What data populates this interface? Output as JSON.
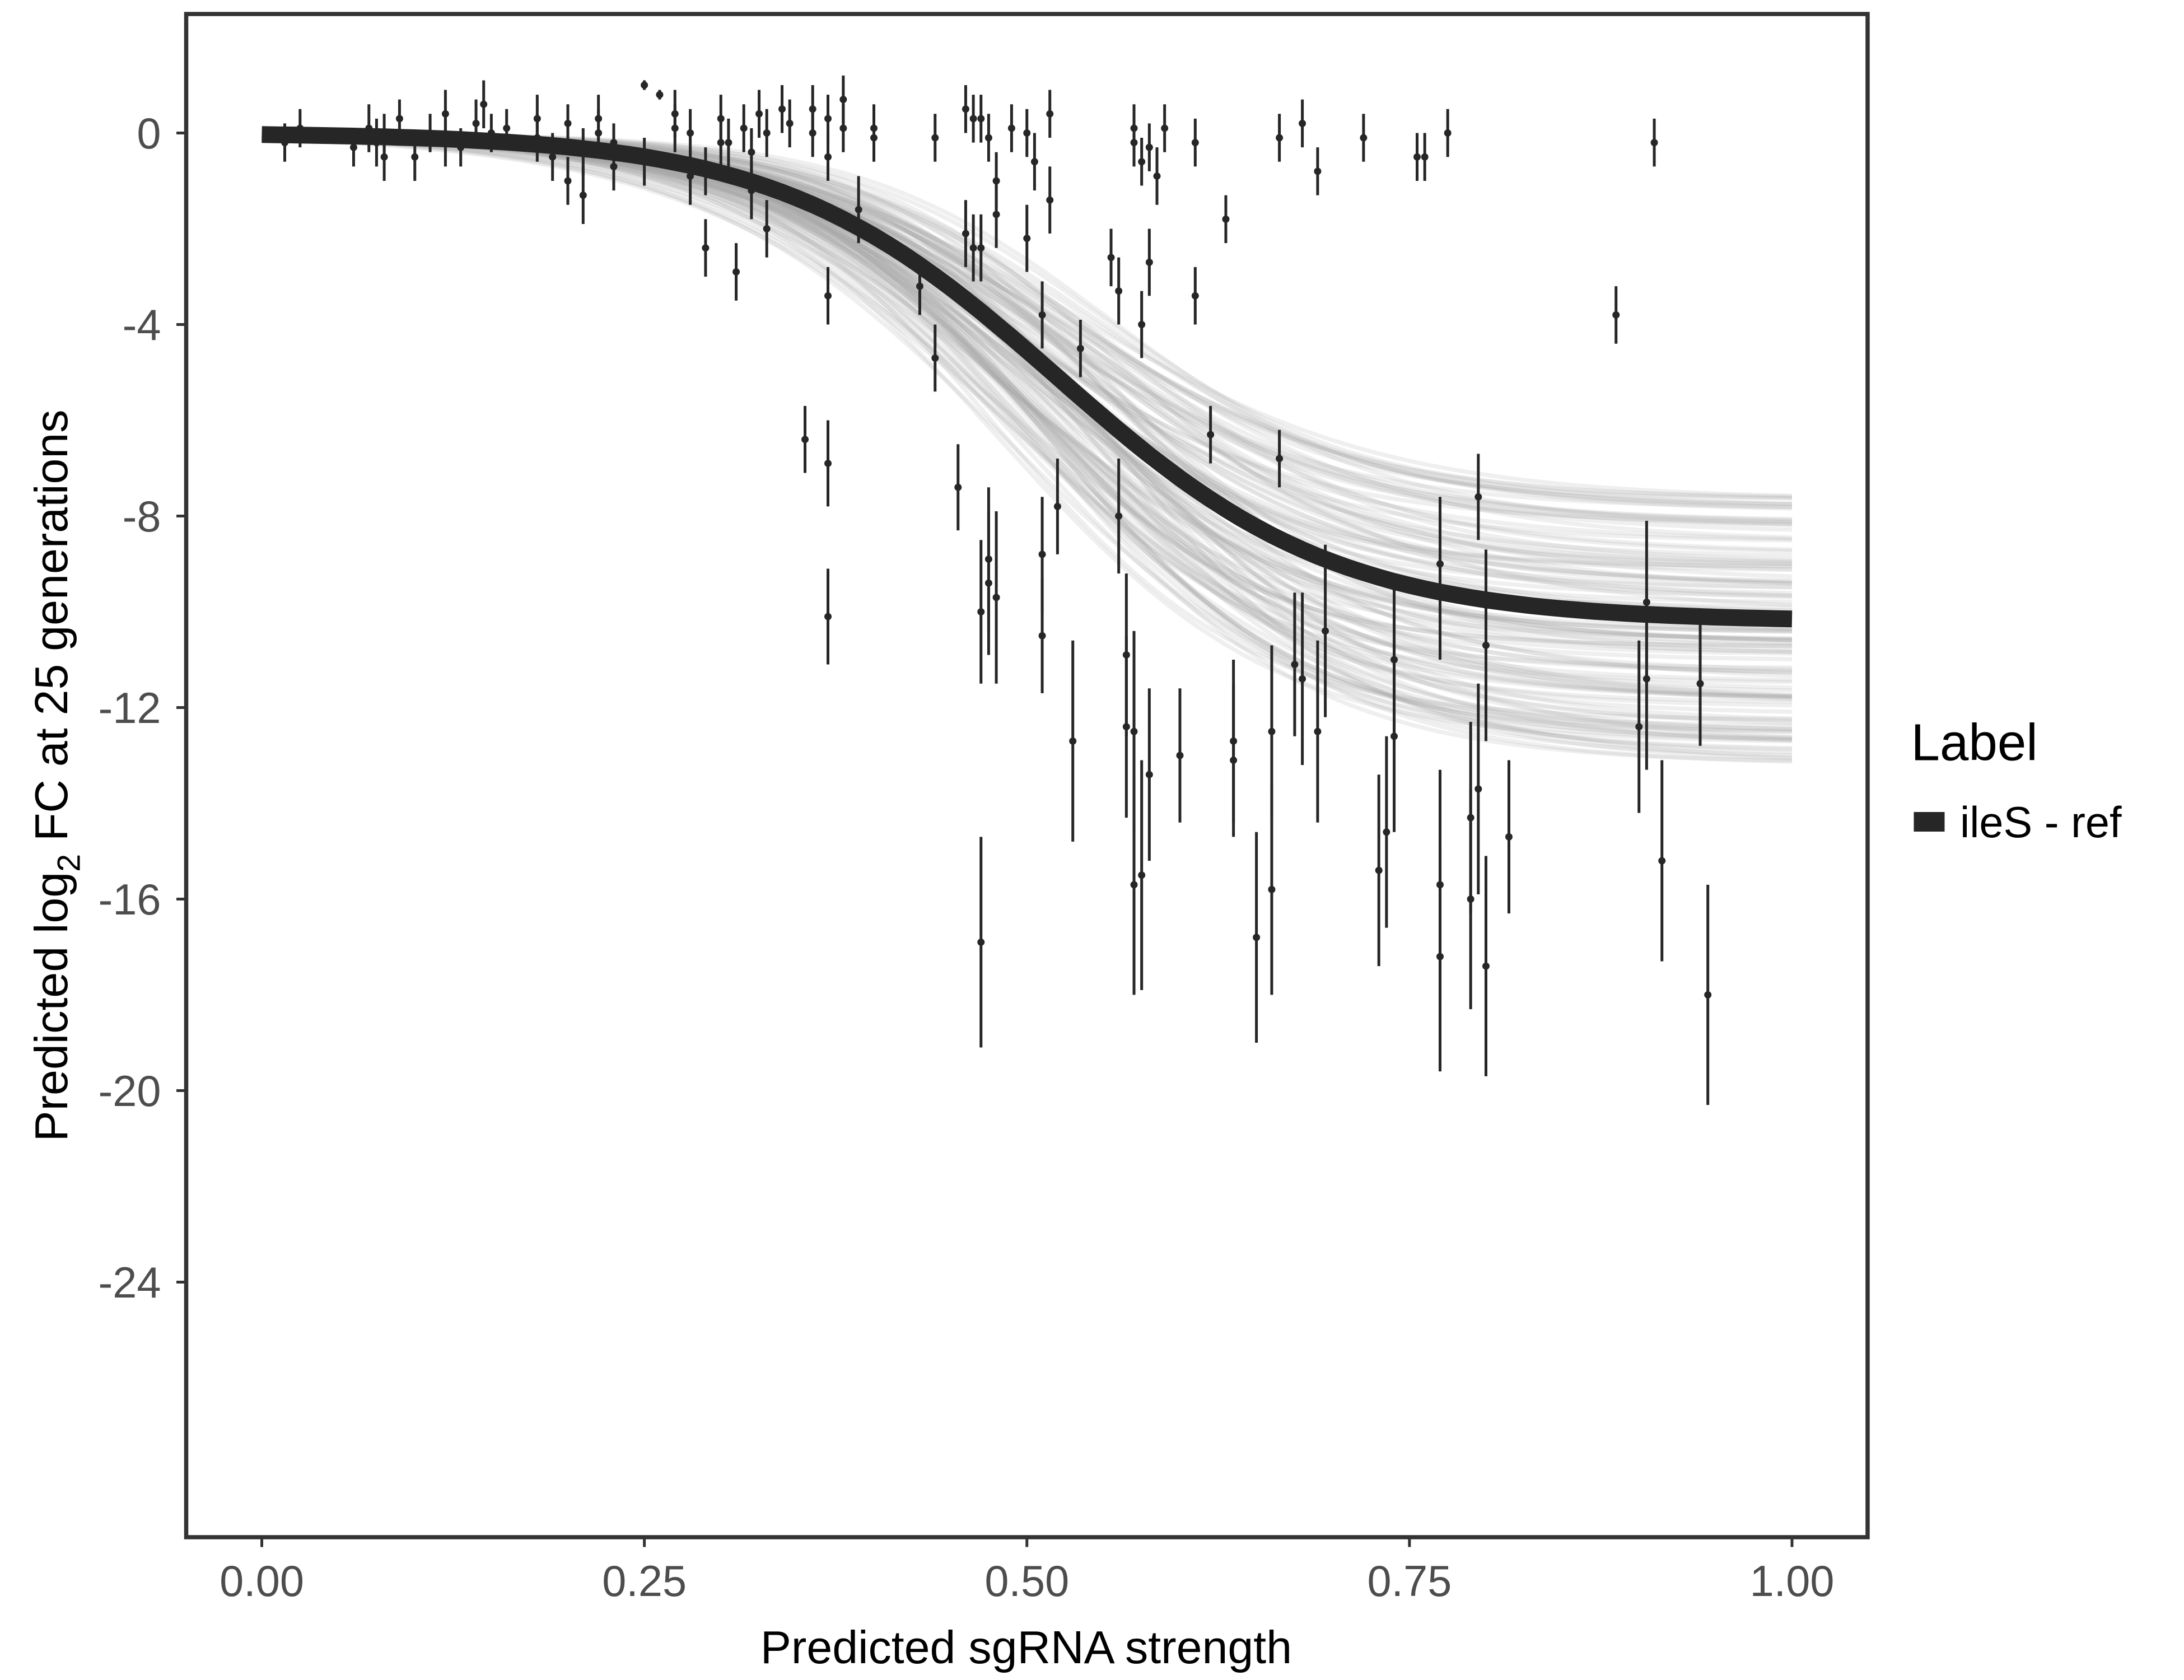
{
  "chart_data": {
    "type": "scatter",
    "xlabel": "Predicted sgRNA strength",
    "ylabel_parts": {
      "pre": "Predicted  log",
      "sub": "2",
      "post": " FC at 25 generations"
    },
    "xlim": [
      -0.05,
      1.05
    ],
    "ylim": [
      -29.3,
      2.5
    ],
    "x_ticks": [
      "0.00",
      "0.25",
      "0.50",
      "0.75",
      "1.00"
    ],
    "x_tick_values": [
      0,
      0.25,
      0.5,
      0.75,
      1
    ],
    "y_ticks": [
      "0",
      "-4",
      "-8",
      "-12",
      "-16",
      "-20",
      "-24"
    ],
    "y_tick_values": [
      0,
      -4,
      -8,
      -12,
      -16,
      -20,
      -24
    ],
    "grid": false,
    "legend": {
      "title": "Label",
      "placement": "right",
      "entries": [
        {
          "name": "ileS - ref",
          "color": "#262626"
        }
      ]
    },
    "fit_curve": {
      "form": "logistic",
      "upper": 0,
      "lower": -10.2,
      "midpoint": 0.52,
      "slope": 11
    },
    "posterior_band": {
      "lower_asymptote_range": [
        -13.2,
        -7.6
      ],
      "color": "#a6a6a6"
    },
    "point_color": "#262626",
    "points": [
      [
        0.015,
        -0.2,
        0.4
      ],
      [
        0.025,
        0.1,
        0.4
      ],
      [
        0.06,
        -0.3,
        0.4
      ],
      [
        0.07,
        0.1,
        0.5
      ],
      [
        0.075,
        -0.2,
        0.5
      ],
      [
        0.08,
        0,
        0.4
      ],
      [
        0.08,
        -0.5,
        0.5
      ],
      [
        0.09,
        0.3,
        0.4
      ],
      [
        0.1,
        -0.5,
        0.5
      ],
      [
        0.11,
        0,
        0.4
      ],
      [
        0.12,
        -0.2,
        0.5
      ],
      [
        0.12,
        0.4,
        0.5
      ],
      [
        0.13,
        -0.3,
        0.4
      ],
      [
        0.14,
        0.2,
        0.5
      ],
      [
        0.145,
        0.6,
        0.5
      ],
      [
        0.15,
        0,
        0.4
      ],
      [
        0.16,
        0.1,
        0.4
      ],
      [
        0.18,
        -0.1,
        0.5
      ],
      [
        0.18,
        0.3,
        0.5
      ],
      [
        0.19,
        -0.5,
        0.5
      ],
      [
        0.2,
        0.2,
        0.4
      ],
      [
        0.2,
        -1,
        0.5
      ],
      [
        0.21,
        -1.3,
        0.6
      ],
      [
        0.21,
        -0.4,
        0.5
      ],
      [
        0.22,
        0,
        0.5
      ],
      [
        0.22,
        0.3,
        0.5
      ],
      [
        0.23,
        -0.7,
        0.5
      ],
      [
        0.23,
        -0.2,
        0.4
      ],
      [
        0.25,
        -0.6,
        0.5
      ],
      [
        0.25,
        1.0,
        0.1
      ],
      [
        0.26,
        0.8,
        0.1
      ],
      [
        0.27,
        0.4,
        0.5
      ],
      [
        0.27,
        0.1,
        0.5
      ],
      [
        0.28,
        0,
        0.5
      ],
      [
        0.28,
        -0.9,
        0.6
      ],
      [
        0.29,
        -2.4,
        0.6
      ],
      [
        0.29,
        -0.8,
        0.5
      ],
      [
        0.3,
        0.3,
        0.5
      ],
      [
        0.3,
        -0.2,
        0.5
      ],
      [
        0.305,
        -0.2,
        0.5
      ],
      [
        0.31,
        -2.9,
        0.6
      ],
      [
        0.315,
        0.1,
        0.5
      ],
      [
        0.32,
        -0.4,
        0.5
      ],
      [
        0.32,
        -1.2,
        0.6
      ],
      [
        0.325,
        0.4,
        0.5
      ],
      [
        0.33,
        0,
        0.5
      ],
      [
        0.33,
        -2,
        0.6
      ],
      [
        0.34,
        0.5,
        0.5
      ],
      [
        0.345,
        0.2,
        0.5
      ],
      [
        0.355,
        -6.4,
        0.7
      ],
      [
        0.36,
        0.5,
        0.5
      ],
      [
        0.36,
        0,
        0.5
      ],
      [
        0.37,
        -6.9,
        0.9
      ],
      [
        0.37,
        -3.4,
        0.6
      ],
      [
        0.37,
        -10.1,
        1.0
      ],
      [
        0.37,
        -0.5,
        0.5
      ],
      [
        0.37,
        0.3,
        0.5
      ],
      [
        0.38,
        0.7,
        0.5
      ],
      [
        0.38,
        0.1,
        0.5
      ],
      [
        0.39,
        -1.6,
        0.7
      ],
      [
        0.4,
        0.1,
        0.5
      ],
      [
        0.4,
        -0.1,
        0.5
      ],
      [
        0.43,
        -3.2,
        0.6
      ],
      [
        0.44,
        -4.7,
        0.7
      ],
      [
        0.44,
        -0.1,
        0.5
      ],
      [
        0.455,
        -7.4,
        0.9
      ],
      [
        0.46,
        0.5,
        0.5
      ],
      [
        0.46,
        -2.1,
        0.7
      ],
      [
        0.465,
        -2.4,
        0.7
      ],
      [
        0.465,
        0.3,
        0.5
      ],
      [
        0.47,
        -10,
        1.5
      ],
      [
        0.47,
        -16.9,
        2.2
      ],
      [
        0.47,
        -2.4,
        0.7
      ],
      [
        0.475,
        -9.4,
        1.5
      ],
      [
        0.475,
        -8.9,
        1.5
      ],
      [
        0.48,
        -9.7,
        1.8
      ],
      [
        0.48,
        -1.0,
        0.6
      ],
      [
        0.48,
        -1.7,
        0.7
      ],
      [
        0.475,
        -0.1,
        0.5
      ],
      [
        0.47,
        0.3,
        0.5
      ],
      [
        0.49,
        0.1,
        0.5
      ],
      [
        0.5,
        -2.2,
        0.7
      ],
      [
        0.5,
        0,
        0.5
      ],
      [
        0.505,
        -0.6,
        0.6
      ],
      [
        0.51,
        -3.8,
        0.7
      ],
      [
        0.51,
        -8.8,
        1.2
      ],
      [
        0.51,
        -10.5,
        1.2
      ],
      [
        0.515,
        -1.4,
        0.7
      ],
      [
        0.515,
        0.4,
        0.5
      ],
      [
        0.52,
        -7.8,
        1.0
      ],
      [
        0.53,
        -12.7,
        2.1
      ],
      [
        0.535,
        -4.5,
        0.6
      ],
      [
        0.555,
        -2.6,
        0.6
      ],
      [
        0.56,
        -3.3,
        0.7
      ],
      [
        0.56,
        -8,
        1.2
      ],
      [
        0.565,
        -10.9,
        1.7
      ],
      [
        0.565,
        -12.4,
        1.9
      ],
      [
        0.57,
        -12.5,
        2.1
      ],
      [
        0.57,
        -15.7,
        2.3
      ],
      [
        0.575,
        -15.5,
        2.4
      ],
      [
        0.575,
        -4,
        0.7
      ],
      [
        0.58,
        -2.7,
        0.7
      ],
      [
        0.58,
        -13.4,
        1.8
      ],
      [
        0.57,
        0.1,
        0.5
      ],
      [
        0.57,
        -0.2,
        0.5
      ],
      [
        0.575,
        -0.6,
        0.5
      ],
      [
        0.58,
        -0.3,
        0.5
      ],
      [
        0.585,
        -0.9,
        0.6
      ],
      [
        0.59,
        0.1,
        0.5
      ],
      [
        0.6,
        -13,
        1.4
      ],
      [
        0.61,
        -3.4,
        0.6
      ],
      [
        0.61,
        -0.2,
        0.5
      ],
      [
        0.62,
        -6.3,
        0.6
      ],
      [
        0.63,
        -1.8,
        0.5
      ],
      [
        0.635,
        -12.7,
        1.7
      ],
      [
        0.635,
        -13.1,
        1.6
      ],
      [
        0.65,
        -16.8,
        2.2
      ],
      [
        0.66,
        -15.8,
        2.2
      ],
      [
        0.66,
        -12.5,
        1.8
      ],
      [
        0.665,
        -0.1,
        0.5
      ],
      [
        0.665,
        -6.8,
        0.6
      ],
      [
        0.675,
        -11.1,
        1.5
      ],
      [
        0.68,
        -11.4,
        1.8
      ],
      [
        0.68,
        0.2,
        0.5
      ],
      [
        0.69,
        -0.8,
        0.5
      ],
      [
        0.69,
        -12.5,
        1.9
      ],
      [
        0.695,
        -10.4,
        1.8
      ],
      [
        0.72,
        -0.1,
        0.5
      ],
      [
        0.73,
        -15.4,
        2.0
      ],
      [
        0.735,
        -14.6,
        2.0
      ],
      [
        0.74,
        -12.6,
        2.0
      ],
      [
        0.74,
        -11,
        1.8
      ],
      [
        0.755,
        -0.5,
        0.5
      ],
      [
        0.76,
        -0.5,
        0.5
      ],
      [
        0.77,
        -15.7,
        2.4
      ],
      [
        0.77,
        -17.2,
        2.4
      ],
      [
        0.77,
        -9,
        1.4
      ],
      [
        0.77,
        -9.6,
        1.4
      ],
      [
        0.775,
        0,
        0.5
      ],
      [
        0.795,
        -7.6,
        0.9
      ],
      [
        0.79,
        -16,
        2.3
      ],
      [
        0.79,
        -14.3,
        2.0
      ],
      [
        0.795,
        -13.7,
        2.2
      ],
      [
        0.8,
        -17.4,
        2.3
      ],
      [
        0.8,
        -10.7,
        2.0
      ],
      [
        0.815,
        -14.7,
        1.6
      ],
      [
        0.885,
        -3.8,
        0.6
      ],
      [
        0.9,
        -12.4,
        1.8
      ],
      [
        0.905,
        -11.4,
        1.9
      ],
      [
        0.905,
        -9.8,
        1.7
      ],
      [
        0.91,
        -0.2,
        0.5
      ],
      [
        0.915,
        -15.2,
        2.1
      ],
      [
        0.94,
        -11.5,
        1.3
      ],
      [
        0.945,
        -18,
        2.3
      ]
    ]
  }
}
